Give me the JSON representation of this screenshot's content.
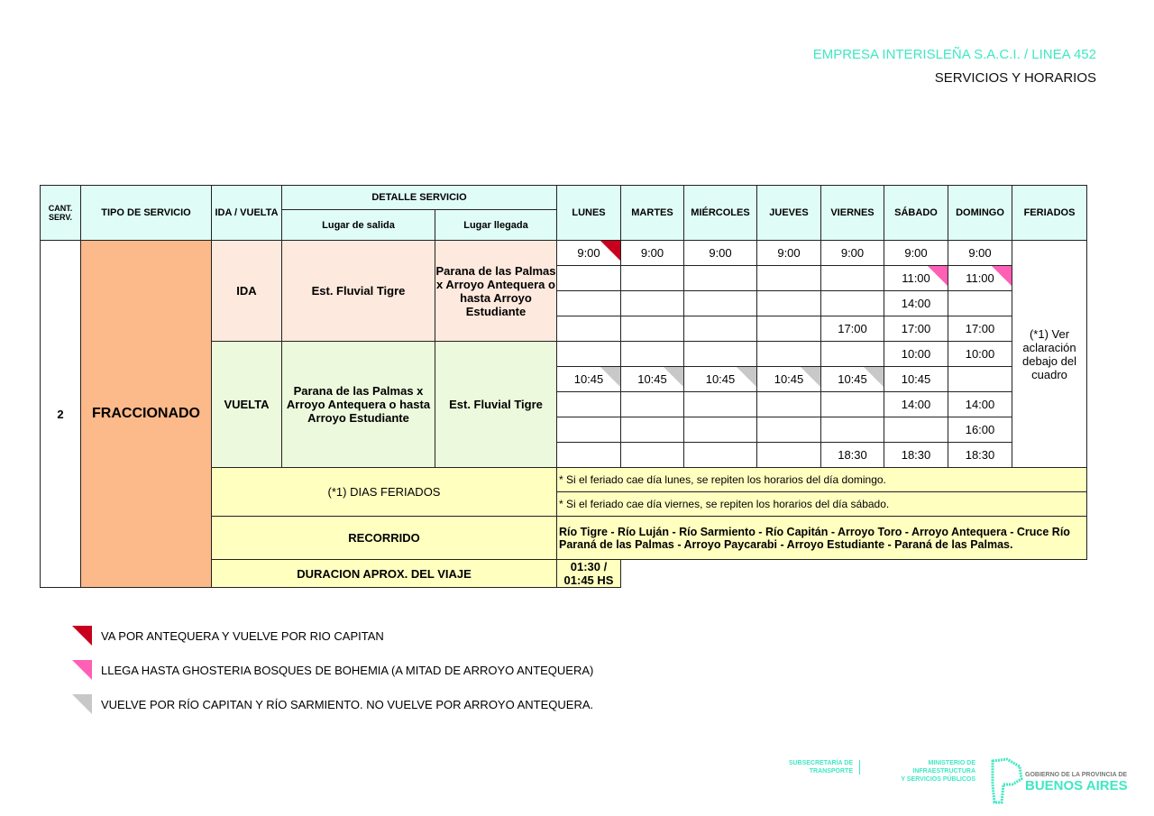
{
  "header": {
    "company": "EMPRESA  INTERISLEÑA S.A.C.I.   / LINEA 452",
    "subtitle": "SERVICIOS Y HORARIOS"
  },
  "table": {
    "headers": {
      "cant": "CANT. SERV.",
      "tipo": "TIPO DE SERVICIO",
      "ida_vuelta": "IDA / VUELTA",
      "detalle": "DETALLE SERVICIO",
      "salida": "Lugar de salida",
      "llegada": "Lugar llegada",
      "days": [
        "LUNES",
        "MARTES",
        "MIÉRCOLES",
        "JUEVES",
        "VIERNES",
        "SÁBADO",
        "DOMINGO"
      ],
      "feriados": "FERIADOS"
    },
    "cant": "2",
    "tipo": "FRACCIONADO",
    "ida": {
      "label": "IDA",
      "salida": "Est. Fluvial Tigre",
      "llegada": "Parana de las Palmas x Arroyo Antequera o hasta Arroyo Estudiante"
    },
    "vuelta": {
      "label": "VUELTA",
      "salida": "Parana de las Palmas x Arroyo Antequera o hasta Arroyo Estudiante",
      "llegada": "Est. Fluvial Tigre"
    },
    "feriados_note": "(*1) Ver aclaración debajo del cuadro",
    "rows": [
      [
        [
          "9:00",
          "red"
        ],
        [
          "9:00"
        ],
        [
          "9:00"
        ],
        [
          "9:00"
        ],
        [
          "9:00"
        ],
        [
          "9:00"
        ],
        [
          "9:00"
        ]
      ],
      [
        [
          ""
        ],
        [
          ""
        ],
        [
          ""
        ],
        [
          ""
        ],
        [
          ""
        ],
        [
          "11:00",
          "pink"
        ],
        [
          "11:00",
          "pink"
        ]
      ],
      [
        [
          ""
        ],
        [
          ""
        ],
        [
          ""
        ],
        [
          ""
        ],
        [
          ""
        ],
        [
          "14:00"
        ],
        [
          ""
        ]
      ],
      [
        [
          ""
        ],
        [
          ""
        ],
        [
          ""
        ],
        [
          ""
        ],
        [
          "17:00"
        ],
        [
          "17:00"
        ],
        [
          "17:00"
        ]
      ],
      [
        [
          ""
        ],
        [
          ""
        ],
        [
          ""
        ],
        [
          ""
        ],
        [
          ""
        ],
        [
          "10:00"
        ],
        [
          "10:00"
        ]
      ],
      [
        [
          "10:45",
          "gray"
        ],
        [
          "10:45",
          "gray"
        ],
        [
          "10:45",
          "gray"
        ],
        [
          "10:45",
          "gray"
        ],
        [
          "10:45",
          "gray"
        ],
        [
          "10:45"
        ],
        [
          ""
        ]
      ],
      [
        [
          ""
        ],
        [
          ""
        ],
        [
          ""
        ],
        [
          ""
        ],
        [
          ""
        ],
        [
          "14:00"
        ],
        [
          "14:00"
        ]
      ],
      [
        [
          ""
        ],
        [
          ""
        ],
        [
          ""
        ],
        [
          ""
        ],
        [
          ""
        ],
        [
          ""
        ],
        [
          "16:00"
        ]
      ],
      [
        [
          ""
        ],
        [
          ""
        ],
        [
          ""
        ],
        [
          ""
        ],
        [
          "18:30"
        ],
        [
          "18:30"
        ],
        [
          "18:30"
        ]
      ]
    ],
    "dias_feriados_label": "(*1) DIAS FERIADOS",
    "feriado_notes": [
      "* Si el feriado cae día lunes, se repiten los horarios del día domingo.",
      "* Si el feriado cae día viernes, se repiten los horarios del día sábado."
    ],
    "recorrido_label": "RECORRIDO",
    "recorrido": "Río Tigre - Río Luján - Río Sarmiento - Río Capitán - Arroyo Toro - Arroyo Antequera - Cruce Río Paraná de las Palmas - Arroyo Paycarabi - Arroyo Estudiante - Paraná de las Palmas.",
    "duracion_label": "DURACION APROX. DEL VIAJE",
    "duracion": "01:30 / 01:45 HS"
  },
  "legend": [
    {
      "color": "#c8001e",
      "text": "VA POR ANTEQUERA Y VUELVE POR RIO CAPITAN"
    },
    {
      "color": "#ff5fb5",
      "text": "LLEGA HASTA GHOSTERIA BOSQUES DE BOHEMIA (A MITAD DE ARROYO ANTEQUERA)"
    },
    {
      "color": "#c8c8c8",
      "text": "VUELVE POR  RÍO CAPITAN Y RÍO SARMIENTO. NO VUELVE POR ARROYO ANTEQUERA."
    }
  ],
  "footer": {
    "sub1": "SUBSECRETARÍA DE",
    "sub2": "TRANSPORTE",
    "min1": "MINISTERIO DE INFRAESTRUCTURA",
    "min2": "Y SERVICIOS PÚBLICOS",
    "gob1": "GOBIERNO DE LA PROVINCIA DE",
    "gob2": "BUENOS AIRES"
  },
  "colors": {
    "accent": "#3fe8c4",
    "header_bg": "#e0fcf6",
    "fraccionado": "#fcb98a",
    "ida": "#fde9dd",
    "vuelta": "#ecf9dc",
    "notes": "#ffffc0"
  }
}
